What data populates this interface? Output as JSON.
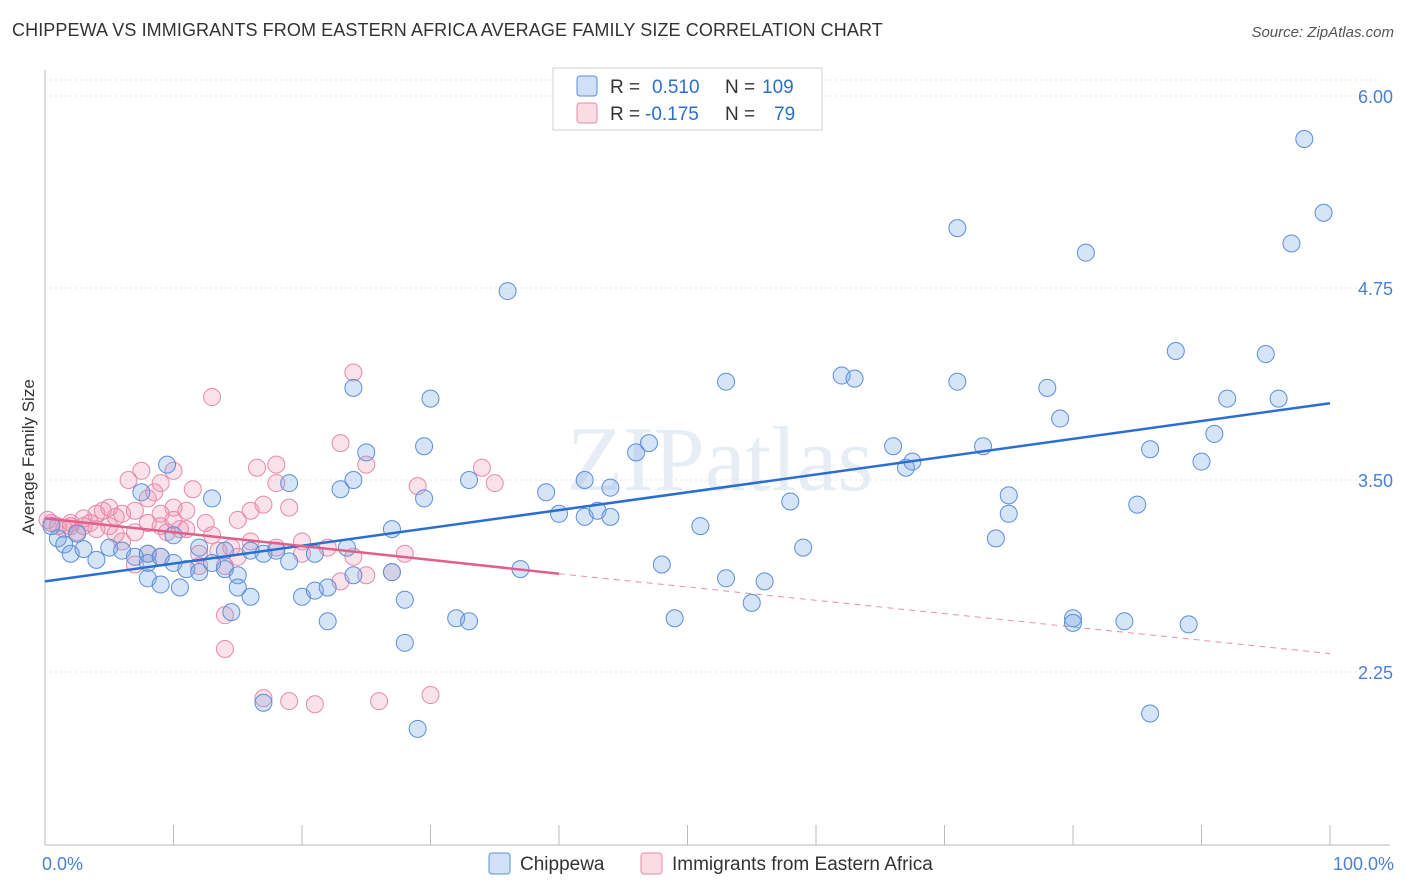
{
  "title": "CHIPPEWA VS IMMIGRANTS FROM EASTERN AFRICA AVERAGE FAMILY SIZE CORRELATION CHART",
  "source": "Source: ZipAtlas.com",
  "watermark": "ZIPatlas",
  "colors": {
    "blue_fill": "rgba(120,165,230,0.30)",
    "blue_stroke": "#5b8fd9",
    "blue_line": "#2a6fd0",
    "pink_fill": "rgba(240,140,170,0.25)",
    "pink_stroke": "#e58aa8",
    "pink_line": "#e0608c",
    "tick_text": "#4a7fd4",
    "grid": "#e2e2e2"
  },
  "chart_data": {
    "type": "scatter",
    "xlabel": "",
    "ylabel": "Average Family Size",
    "xlim": [
      0,
      100
    ],
    "ylim": [
      1.0,
      6.15
    ],
    "x_tick_labels": [
      "0.0%",
      "100.0%"
    ],
    "y_ticks": [
      2.25,
      3.5,
      4.75,
      6.0
    ],
    "y_tick_labels": [
      "2.25",
      "3.50",
      "4.75",
      "6.00"
    ],
    "legend": [
      {
        "series": "Chippewa",
        "r_label": "R =",
        "r_value": "0.510",
        "n_label": "N =",
        "n_value": "109"
      },
      {
        "series": "Immigrants from Eastern Africa",
        "r_label": "R =",
        "r_value": "-0.175",
        "n_label": "N =",
        "n_value": "79"
      }
    ],
    "series": [
      {
        "name": "Chippewa",
        "trend": {
          "x": [
            0,
            100
          ],
          "y": [
            2.84,
            4.0
          ]
        },
        "points": [
          [
            0.5,
            3.2
          ],
          [
            1,
            3.12
          ],
          [
            1.5,
            3.08
          ],
          [
            2,
            3.02
          ],
          [
            2.5,
            3.15
          ],
          [
            3,
            3.05
          ],
          [
            4,
            2.98
          ],
          [
            5,
            3.06
          ],
          [
            6,
            3.04
          ],
          [
            7,
            3.0
          ],
          [
            7.5,
            3.42
          ],
          [
            8,
            3.02
          ],
          [
            8,
            2.96
          ],
          [
            8,
            2.86
          ],
          [
            9,
            3.0
          ],
          [
            9,
            2.82
          ],
          [
            9.5,
            3.6
          ],
          [
            10,
            3.14
          ],
          [
            10,
            2.96
          ],
          [
            10.5,
            2.8
          ],
          [
            11,
            2.92
          ],
          [
            12,
            2.9
          ],
          [
            12,
            3.06
          ],
          [
            13,
            3.38
          ],
          [
            13,
            2.96
          ],
          [
            14,
            2.92
          ],
          [
            14,
            3.04
          ],
          [
            14.5,
            2.64
          ],
          [
            15,
            2.88
          ],
          [
            15,
            2.8
          ],
          [
            16,
            2.74
          ],
          [
            16,
            3.04
          ],
          [
            17,
            2.05
          ],
          [
            17,
            3.02
          ],
          [
            18,
            3.04
          ],
          [
            19,
            3.48
          ],
          [
            19,
            2.97
          ],
          [
            20,
            2.74
          ],
          [
            21,
            2.78
          ],
          [
            21,
            3.02
          ],
          [
            22,
            2.8
          ],
          [
            22,
            2.58
          ],
          [
            23,
            3.44
          ],
          [
            23.5,
            3.06
          ],
          [
            24,
            4.1
          ],
          [
            24,
            3.5
          ],
          [
            24,
            2.88
          ],
          [
            25,
            3.68
          ],
          [
            27,
            3.18
          ],
          [
            27,
            2.9
          ],
          [
            28,
            2.72
          ],
          [
            28,
            2.44
          ],
          [
            29,
            1.88
          ],
          [
            29.5,
            3.38
          ],
          [
            29.5,
            3.72
          ],
          [
            30,
            4.03
          ],
          [
            32,
            2.6
          ],
          [
            33,
            2.58
          ],
          [
            33,
            3.5
          ],
          [
            36,
            4.73
          ],
          [
            37,
            2.92
          ],
          [
            39,
            3.42
          ],
          [
            40,
            3.28
          ],
          [
            42,
            3.26
          ],
          [
            42,
            3.5
          ],
          [
            43,
            3.3
          ],
          [
            44,
            3.26
          ],
          [
            44,
            3.45
          ],
          [
            46,
            3.68
          ],
          [
            47,
            3.74
          ],
          [
            48,
            2.95
          ],
          [
            49,
            2.6
          ],
          [
            51,
            3.2
          ],
          [
            53,
            2.86
          ],
          [
            53,
            4.14
          ],
          [
            55,
            2.7
          ],
          [
            56,
            2.84
          ],
          [
            58,
            3.36
          ],
          [
            59,
            3.06
          ],
          [
            62,
            4.18
          ],
          [
            63,
            4.16
          ],
          [
            66,
            3.72
          ],
          [
            67,
            3.58
          ],
          [
            67.5,
            3.62
          ],
          [
            71,
            5.14
          ],
          [
            71,
            4.14
          ],
          [
            73,
            3.72
          ],
          [
            74,
            3.12
          ],
          [
            75,
            3.4
          ],
          [
            75,
            3.28
          ],
          [
            78,
            4.1
          ],
          [
            79,
            3.9
          ],
          [
            80,
            2.6
          ],
          [
            80,
            2.57
          ],
          [
            81,
            4.98
          ],
          [
            84,
            2.58
          ],
          [
            85,
            3.34
          ],
          [
            86,
            3.7
          ],
          [
            86,
            1.98
          ],
          [
            88,
            4.34
          ],
          [
            89,
            2.56
          ],
          [
            90,
            3.62
          ],
          [
            91,
            3.8
          ],
          [
            92,
            4.03
          ],
          [
            95,
            4.32
          ],
          [
            96,
            4.03
          ],
          [
            97,
            5.04
          ],
          [
            98,
            5.72
          ],
          [
            99.5,
            5.24
          ]
        ]
      },
      {
        "name": "Immigrants from Eastern Africa",
        "trend": {
          "x": [
            0,
            40
          ],
          "y": [
            3.25,
            2.89
          ],
          "dashed_to": {
            "x": 100,
            "y": 2.37
          }
        },
        "points": [
          [
            0.2,
            3.24
          ],
          [
            0.5,
            3.22
          ],
          [
            1,
            3.2
          ],
          [
            1.5,
            3.18
          ],
          [
            2,
            3.22
          ],
          [
            2,
            3.2
          ],
          [
            2.5,
            3.16
          ],
          [
            3,
            3.25
          ],
          [
            3,
            3.2
          ],
          [
            3.5,
            3.22
          ],
          [
            4,
            3.28
          ],
          [
            4,
            3.18
          ],
          [
            4.5,
            3.3
          ],
          [
            5,
            3.32
          ],
          [
            5,
            3.2
          ],
          [
            5.5,
            3.26
          ],
          [
            5.5,
            3.15
          ],
          [
            6,
            3.28
          ],
          [
            6,
            3.1
          ],
          [
            6.5,
            3.5
          ],
          [
            7,
            3.3
          ],
          [
            7,
            3.16
          ],
          [
            7,
            2.95
          ],
          [
            7.5,
            3.56
          ],
          [
            8,
            3.22
          ],
          [
            8,
            3.02
          ],
          [
            8,
            3.38
          ],
          [
            8.5,
            3.42
          ],
          [
            9,
            3.28
          ],
          [
            9,
            3.2
          ],
          [
            9,
            3.48
          ],
          [
            9,
            3.0
          ],
          [
            9.5,
            3.16
          ],
          [
            10,
            3.24
          ],
          [
            10,
            3.56
          ],
          [
            10,
            3.32
          ],
          [
            10.5,
            3.18
          ],
          [
            11,
            3.3
          ],
          [
            11,
            3.18
          ],
          [
            11.5,
            3.44
          ],
          [
            12,
            2.94
          ],
          [
            12,
            3.02
          ],
          [
            12.5,
            3.22
          ],
          [
            13,
            4.04
          ],
          [
            13,
            3.14
          ],
          [
            13.5,
            3.04
          ],
          [
            14,
            2.94
          ],
          [
            14,
            2.62
          ],
          [
            14,
            2.4
          ],
          [
            14.5,
            3.06
          ],
          [
            15,
            3.24
          ],
          [
            15,
            3.0
          ],
          [
            16,
            3.3
          ],
          [
            16,
            3.1
          ],
          [
            16.5,
            3.58
          ],
          [
            17,
            3.34
          ],
          [
            17,
            2.08
          ],
          [
            18,
            3.6
          ],
          [
            18,
            3.48
          ],
          [
            18,
            3.06
          ],
          [
            19,
            3.32
          ],
          [
            19,
            2.06
          ],
          [
            20,
            3.1
          ],
          [
            20,
            3.02
          ],
          [
            21,
            2.04
          ],
          [
            22,
            3.06
          ],
          [
            23,
            3.74
          ],
          [
            23,
            2.84
          ],
          [
            24,
            4.2
          ],
          [
            24,
            3.0
          ],
          [
            25,
            3.6
          ],
          [
            25,
            2.88
          ],
          [
            26,
            2.06
          ],
          [
            27,
            2.9
          ],
          [
            28,
            3.02
          ],
          [
            29,
            3.46
          ],
          [
            30,
            2.1
          ],
          [
            34,
            3.58
          ],
          [
            35,
            3.48
          ]
        ]
      }
    ]
  },
  "bottom_legend": [
    "Chippewa",
    "Immigrants from Eastern Africa"
  ]
}
